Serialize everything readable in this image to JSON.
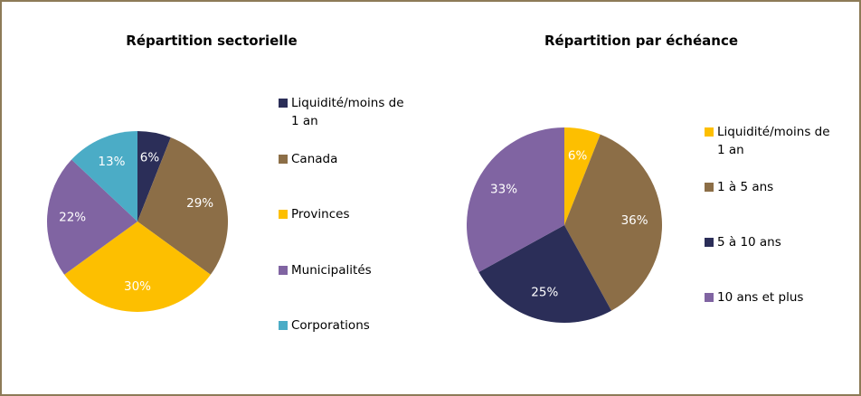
{
  "chart_data": [
    {
      "type": "pie",
      "title": "Répartition sectorielle",
      "categories": [
        "Liquidité/moins de 1 an",
        "Canada",
        "Provinces",
        "Municipalités",
        "Corporations"
      ],
      "values": [
        6,
        29,
        30,
        22,
        13
      ],
      "value_labels": [
        "6%",
        "29%",
        "30%",
        "22%",
        "13%"
      ],
      "colors": [
        "#2b2e58",
        "#8c6e47",
        "#fdbf00",
        "#8064a2",
        "#4bacc6"
      ]
    },
    {
      "type": "pie",
      "title": "Répartition par échéance",
      "categories": [
        "Liquidité/moins de 1 an",
        "1 à 5 ans",
        "5 à 10 ans",
        "10 ans et plus"
      ],
      "values": [
        6,
        36,
        25,
        33
      ],
      "value_labels": [
        "6%",
        "36%",
        "25%",
        "33%"
      ],
      "colors": [
        "#fdbf00",
        "#8c6e47",
        "#2b2e58",
        "#8064a2"
      ]
    }
  ]
}
